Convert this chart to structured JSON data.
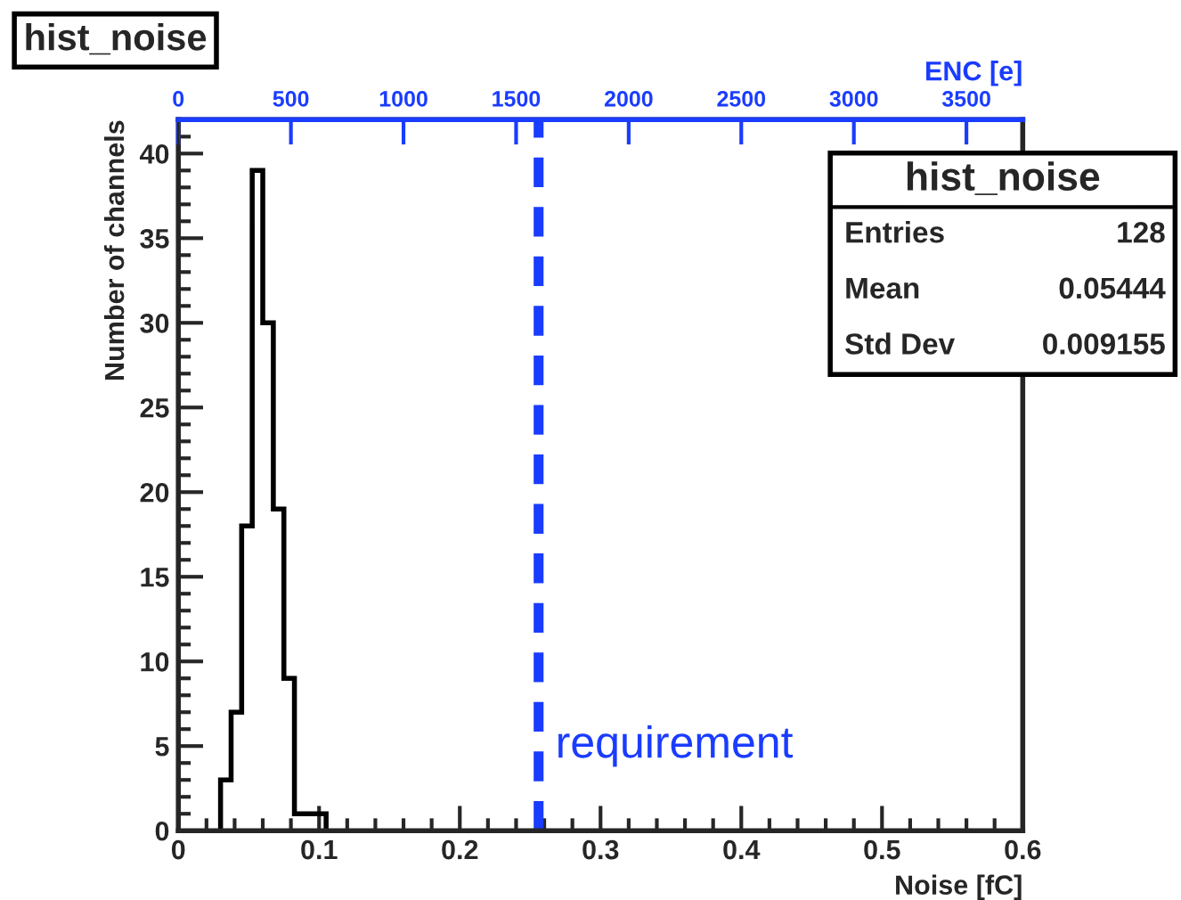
{
  "chart_data": {
    "type": "histogram",
    "title": "hist_noise",
    "xlabel": "Noise [fC]",
    "ylabel": "Number of channels",
    "x2label": "ENC [e]",
    "bins": [
      0.03,
      0.0375,
      0.045,
      0.0525,
      0.06,
      0.0675,
      0.075,
      0.0825,
      0.09,
      0.0975,
      0.105
    ],
    "values": [
      3,
      7,
      18,
      39,
      30,
      19,
      9,
      1,
      1,
      1
    ],
    "color": "#000000",
    "xlim": [
      0,
      0.6
    ],
    "xticks": [
      0,
      0.1,
      0.2,
      0.3,
      0.4,
      0.5,
      0.6
    ],
    "ylim": [
      0,
      42
    ],
    "yticks": [
      0,
      5,
      10,
      15,
      20,
      25,
      30,
      35,
      40
    ],
    "x2lim": [
      0,
      3750
    ],
    "x2ticks": [
      0,
      500,
      1000,
      1500,
      2000,
      2500,
      3000,
      3500
    ],
    "ref_lines": [
      {
        "axis": "x",
        "value": 0.256,
        "label": "requirement",
        "color": "#1a3cff",
        "line_style": "dashed"
      }
    ],
    "annotations": [
      "hist_noise",
      "Entries",
      "128",
      "Mean",
      "0.05444",
      "Std Dev",
      "0.009155"
    ],
    "grid": false
  }
}
